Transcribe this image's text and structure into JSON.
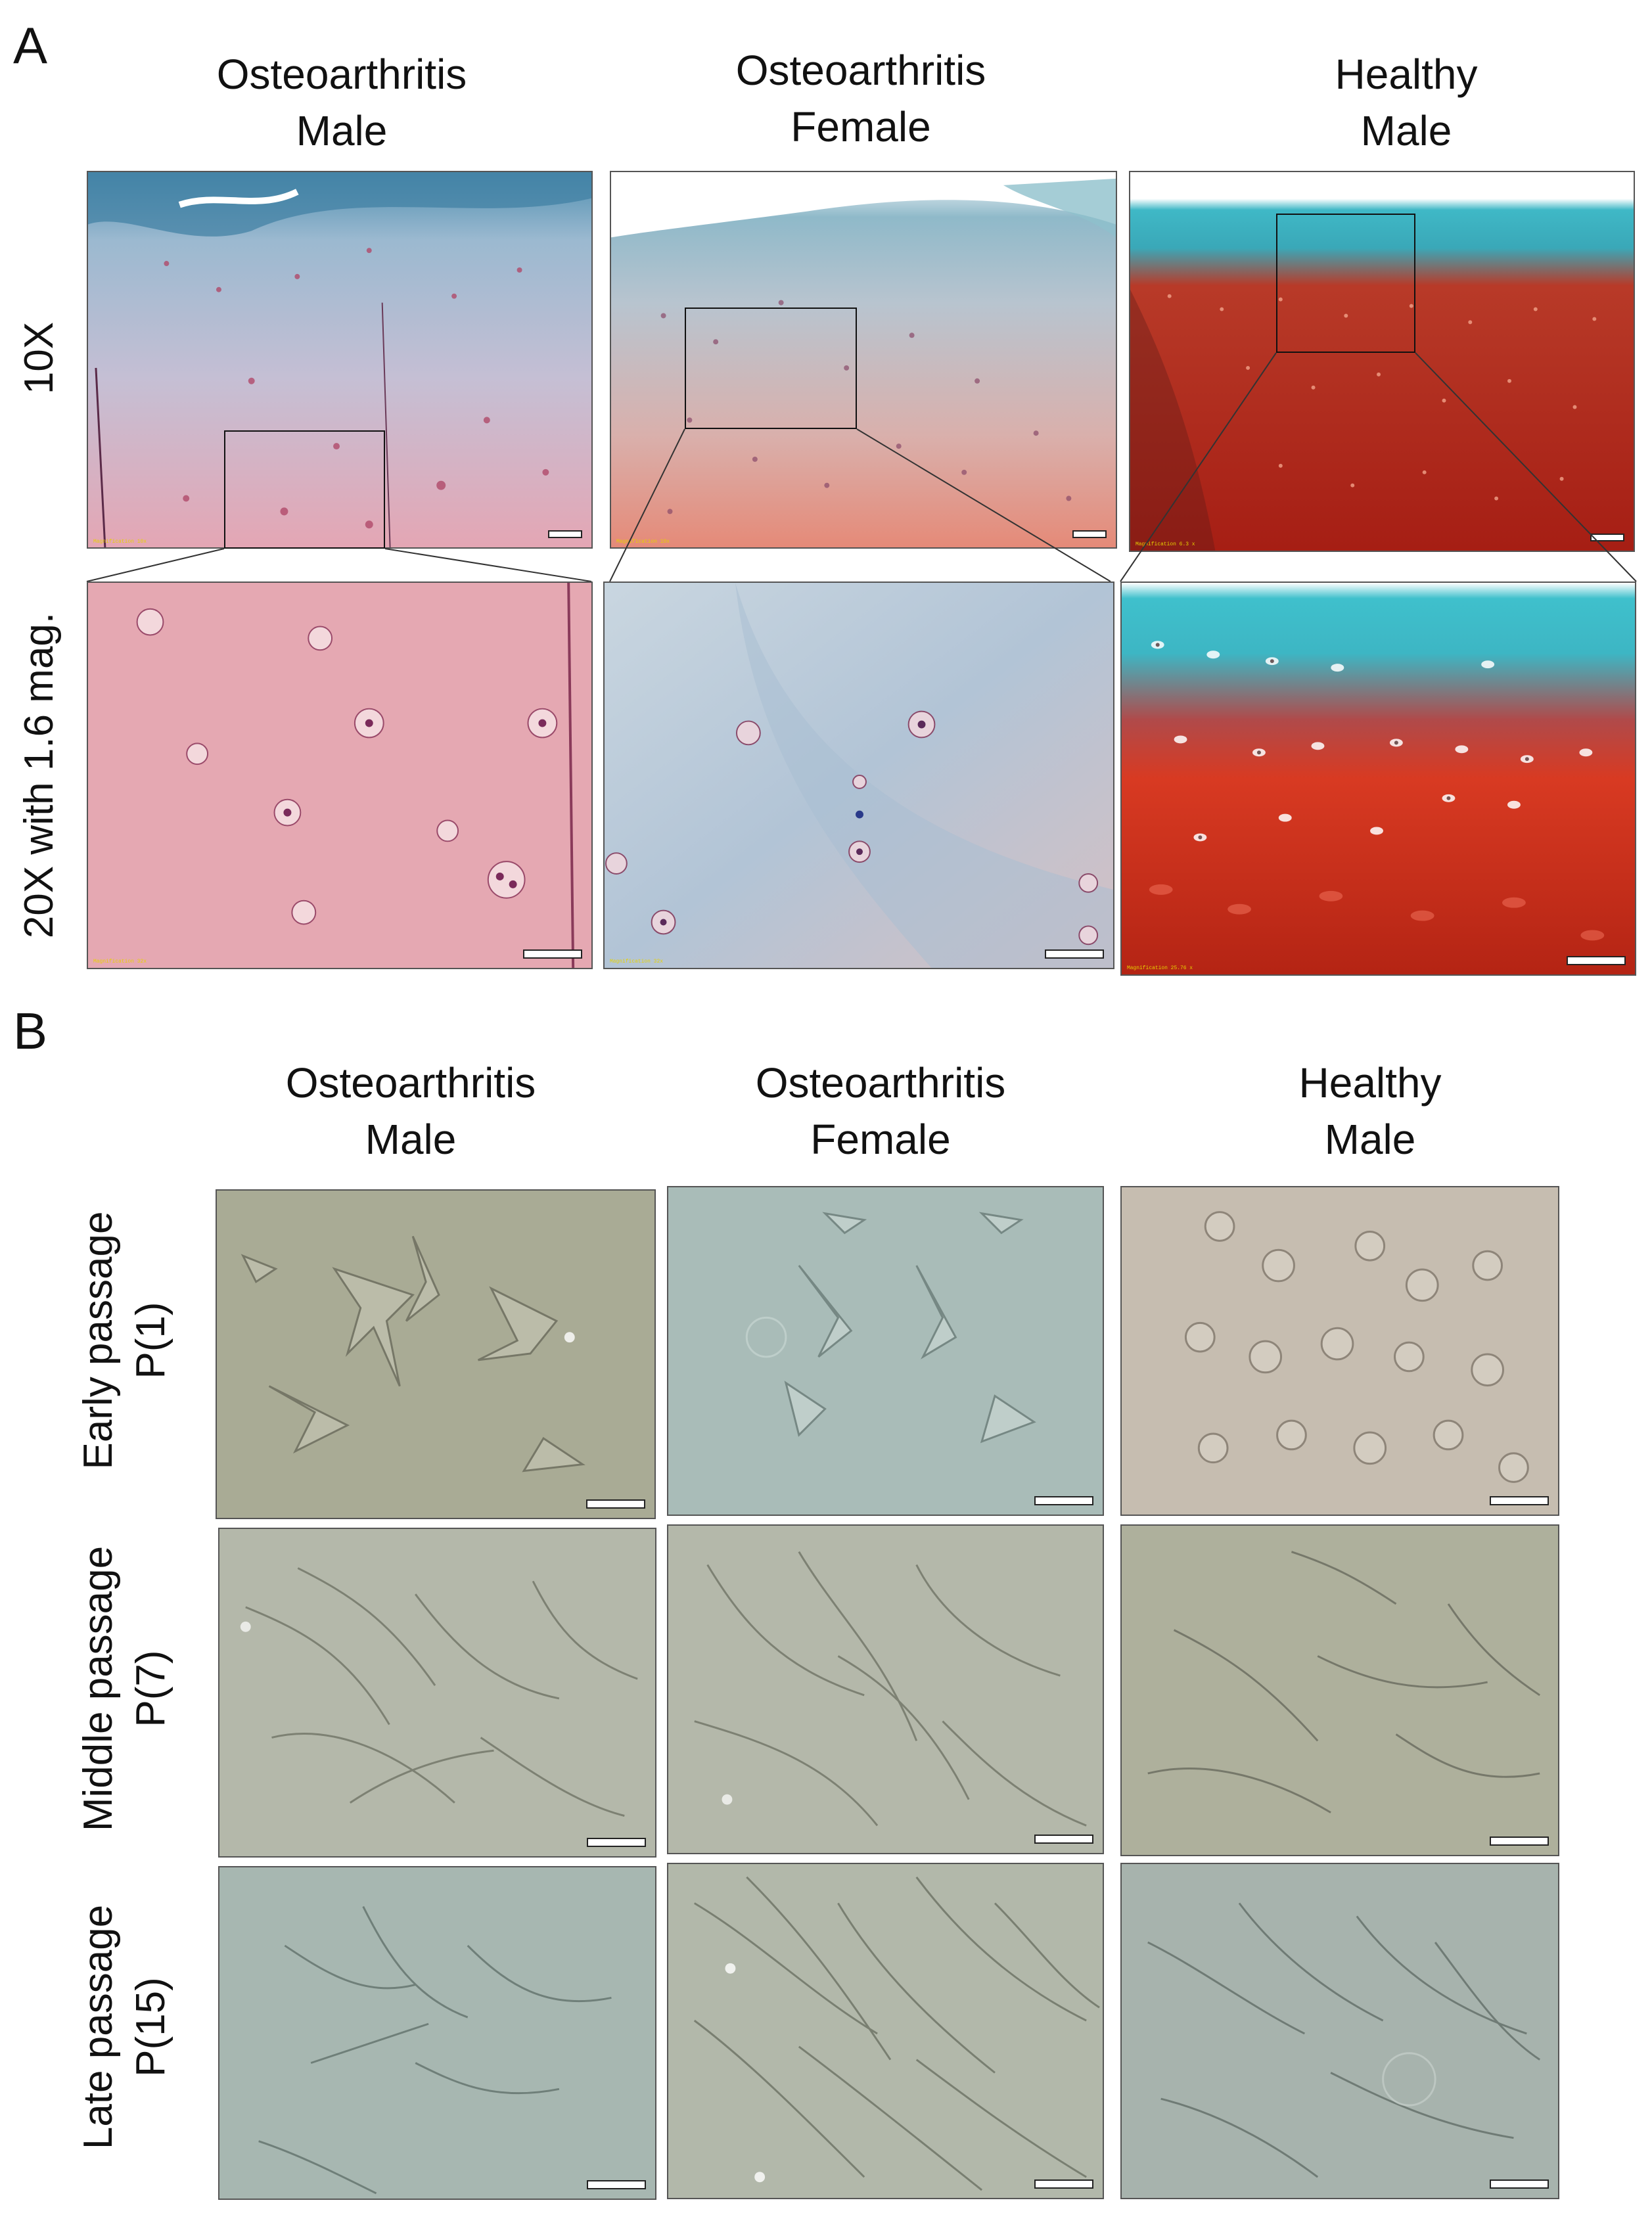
{
  "panel_a": {
    "letter": "A",
    "columns": [
      {
        "line1": "Osteoarthritis",
        "line2": "Male"
      },
      {
        "line1": "Osteoarthritis",
        "line2": "Female"
      },
      {
        "line1": "Healthy",
        "line2": "Male"
      }
    ],
    "rows": [
      "10X",
      "20X with 1.6 mag."
    ]
  },
  "panel_b": {
    "letter": "B",
    "columns": [
      {
        "line1": "Osteoarthritis",
        "line2": "Male"
      },
      {
        "line1": "Osteoarthritis",
        "line2": "Female"
      },
      {
        "line1": "Healthy",
        "line2": "Male"
      }
    ],
    "rows": [
      {
        "line1": "Early passage",
        "line2": "P(1)"
      },
      {
        "line1": "Middle passage",
        "line2": "P(7)"
      },
      {
        "line1": "Late passage",
        "line2": "P(15)"
      }
    ]
  },
  "colors": {
    "oa_stain_top": "#8fb5c8",
    "oa_stain_bottom": "#d98c98",
    "healthy_top": "#3fb3c2",
    "healthy_bottom": "#b8281c",
    "culture_olive": "#a9ab95",
    "culture_teal": "#a9bcb8",
    "culture_beige": "#c6bdb0",
    "culture_grey": "#b4b8aa"
  }
}
